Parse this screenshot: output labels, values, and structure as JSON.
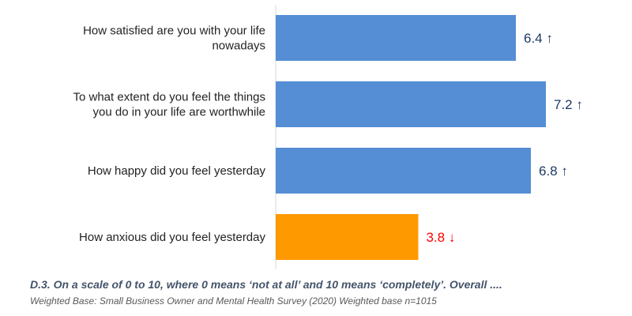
{
  "chart_data": {
    "type": "bar",
    "orientation": "horizontal",
    "categories": [
      [
        "How satisfied are you with your life",
        "nowadays"
      ],
      [
        "To what extent do you feel the things",
        "you do in your life are worthwhile"
      ],
      [
        "How happy did you feel yesterday"
      ],
      [
        "How anxious did you feel yesterday"
      ]
    ],
    "values": [
      6.4,
      7.2,
      6.8,
      3.8
    ],
    "value_labels": [
      "6.4 ↑",
      "7.2 ↑",
      "6.8 ↑",
      "3.8 ↓"
    ],
    "bar_colors": [
      "#558ed5",
      "#558ed5",
      "#558ed5",
      "#ff9900"
    ],
    "label_colors": [
      "#1f3864",
      "#1f3864",
      "#1f3864",
      "#ff0000"
    ],
    "xlim": [
      0,
      8
    ],
    "grid": false,
    "legend": "none"
  },
  "caption": "D.3. On a scale of 0 to 10, where 0 means ‘not at all’ and 10 means ‘completely’. Overall ....",
  "base_note": "Weighted Base: Small Business Owner and Mental Health Survey (2020) Weighted base n=1015",
  "colors": {
    "axis": "#d9d9d9",
    "caption": "#44546a",
    "base_note": "#595959"
  }
}
